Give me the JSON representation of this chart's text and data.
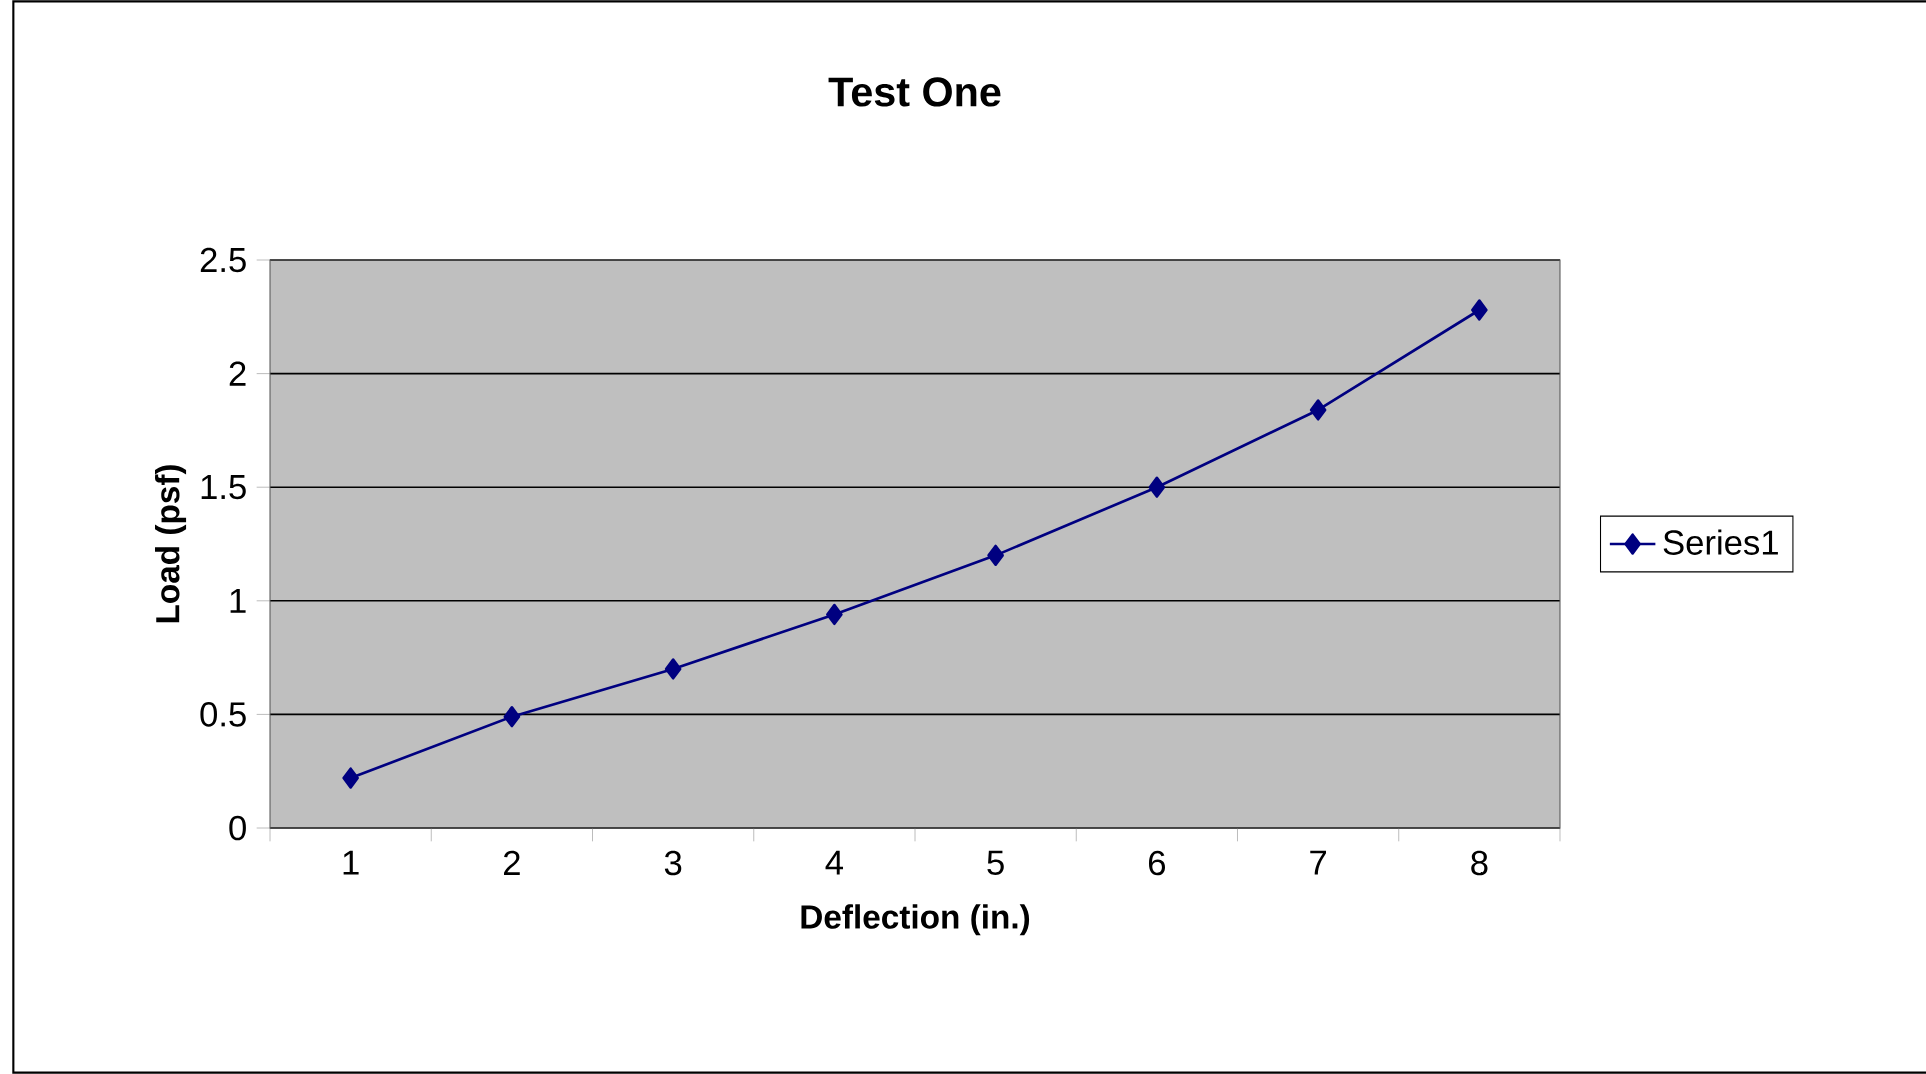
{
  "chart_data": {
    "type": "line",
    "title": "Test One",
    "xlabel": "Deflection (in.)",
    "ylabel": "Load (psf)",
    "categories": [
      "1",
      "2",
      "3",
      "4",
      "5",
      "6",
      "7",
      "8"
    ],
    "series": [
      {
        "name": "Series1",
        "color": "#000080",
        "values": [
          0.22,
          0.49,
          0.7,
          0.94,
          1.2,
          1.5,
          1.84,
          2.28
        ]
      }
    ],
    "ylim": [
      0,
      2.5
    ],
    "yticks": [
      0,
      0.5,
      1,
      1.5,
      2,
      2.5
    ],
    "grid": "y",
    "legend": "right",
    "marker": "diamond",
    "line_style": "solid"
  }
}
